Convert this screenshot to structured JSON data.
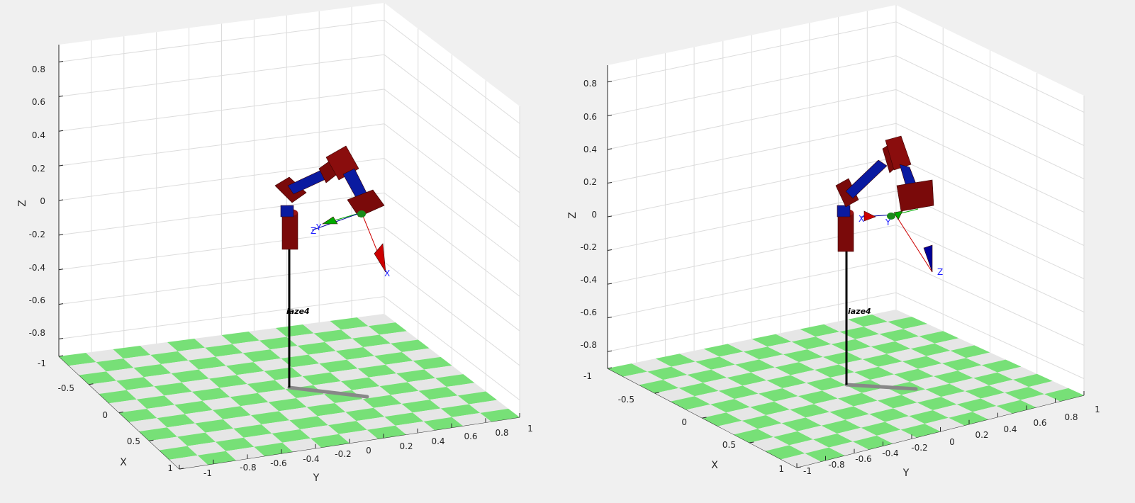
{
  "chart_data": [
    {
      "type": "robot-3d-plot",
      "xlabel": "X",
      "ylabel": "Y",
      "zlabel": "Z",
      "xlim": [
        -1,
        1
      ],
      "ylim": [
        -1,
        1
      ],
      "zlim": [
        -0.9,
        0.9
      ],
      "x_ticks": [
        "-1",
        "-0.5",
        "0",
        "0.5",
        "1"
      ],
      "y_ticks": [
        "-1",
        "-0.8",
        "-0.6",
        "-0.4",
        "-0.2",
        "0",
        "0.2",
        "0.4",
        "0.6",
        "0.8",
        "1"
      ],
      "z_ticks": [
        "-0.8",
        "-0.6",
        "-0.4",
        "-0.2",
        "0",
        "0.2",
        "0.4",
        "0.6",
        "0.8"
      ],
      "grid": true,
      "floor": "checkerboard",
      "floor_colors": [
        "#77e077",
        "#e6e6e6"
      ],
      "robot_name": "iaze4",
      "frame_labels": [
        "Z",
        "Y",
        "X"
      ]
    },
    {
      "type": "robot-3d-plot",
      "xlabel": "X",
      "ylabel": "Y",
      "zlabel": "Z",
      "xlim": [
        -1,
        1
      ],
      "ylim": [
        -1,
        1
      ],
      "zlim": [
        -0.9,
        0.9
      ],
      "x_ticks": [
        "-1",
        "-0.5",
        "0",
        "0.5",
        "1"
      ],
      "y_ticks": [
        "-1",
        "-0.8",
        "-0.6",
        "-0.4",
        "-0.2",
        "0",
        "0.2",
        "0.4",
        "0.6",
        "0.8",
        "1"
      ],
      "z_ticks": [
        "-0.8",
        "-0.6",
        "-0.4",
        "-0.2",
        "0",
        "0.2",
        "0.4",
        "0.6",
        "0.8"
      ],
      "grid": true,
      "floor": "checkerboard",
      "floor_colors": [
        "#77e077",
        "#e6e6e6"
      ],
      "robot_name": "iaze4",
      "frame_labels": [
        "X",
        "Y",
        "Z"
      ]
    }
  ],
  "colors": {
    "link": "#7a0a0a",
    "joint_blue": "#0a1aa0",
    "pole": "#000000",
    "shadow": "#888888",
    "axis_x": "#cc0000",
    "axis_y": "#00aa00",
    "axis_z": "#000099"
  }
}
